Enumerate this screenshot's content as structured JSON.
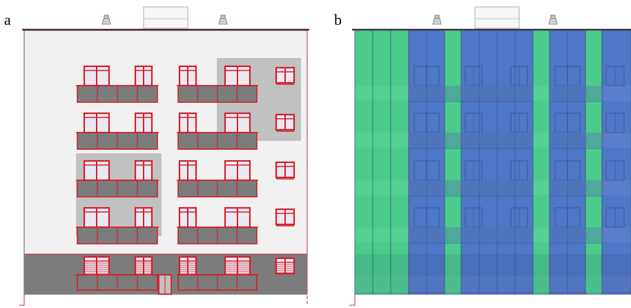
{
  "panels": {
    "a": {
      "label": "a"
    },
    "b": {
      "label": "b"
    }
  },
  "colors": {
    "facade": "#f1f1f1",
    "frame_red": "#d21f2b",
    "shade_gray": "#c1c1c1",
    "dark_gray": "#7c7c7c",
    "glass": "#eae8f3",
    "green_panel": "#4ccc8c",
    "blue_panel": "#4f78c8",
    "roof_line": "#222222"
  },
  "icons": [
    "roof-vent-icon",
    "roof-structure-icon"
  ]
}
